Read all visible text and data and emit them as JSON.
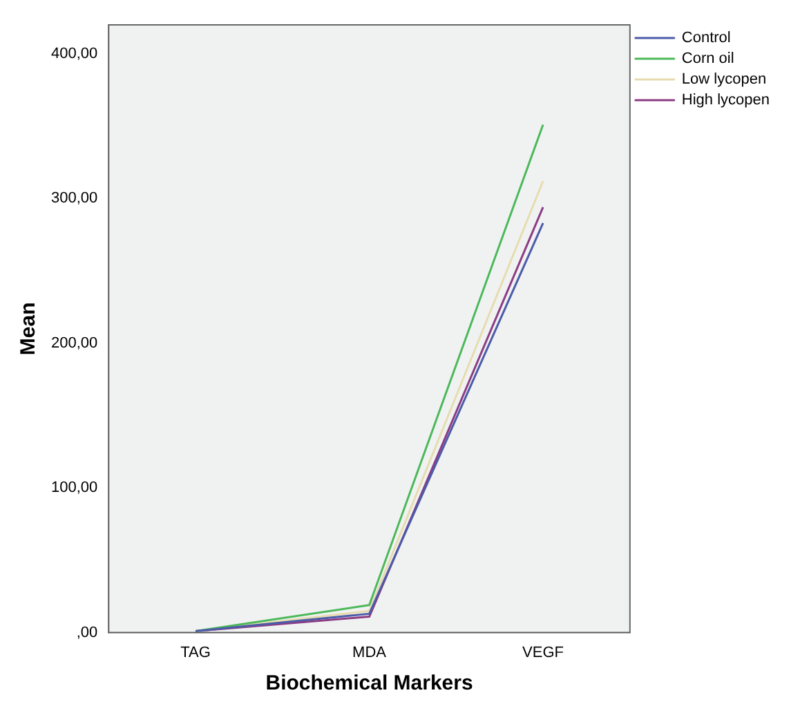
{
  "chart_data": {
    "type": "line",
    "xlabel": "Biochemical Markers",
    "ylabel": "Mean",
    "categories": [
      "TAG",
      "MDA",
      "VEGF"
    ],
    "series": [
      {
        "name": "Control",
        "color": "#4b5ba8",
        "values": [
          1,
          13,
          283
        ]
      },
      {
        "name": "Corn oil",
        "color": "#4cb85a",
        "values": [
          1,
          19,
          351
        ]
      },
      {
        "name": "Low lycopen",
        "color": "#e6dcb0",
        "values": [
          1,
          15,
          312
        ]
      },
      {
        "name": "High lycopen",
        "color": "#8c3c84",
        "values": [
          1,
          11,
          294
        ]
      }
    ],
    "ylim": [
      0,
      420
    ],
    "yticks": [
      {
        "value": 0,
        "label": ",00"
      },
      {
        "value": 100,
        "label": "100,00"
      },
      {
        "value": 200,
        "label": "200,00"
      },
      {
        "value": 300,
        "label": "300,00"
      },
      {
        "value": 400,
        "label": "400,00"
      }
    ],
    "grid": false,
    "legend": "top right",
    "marker": "none",
    "line_style": "solid"
  }
}
